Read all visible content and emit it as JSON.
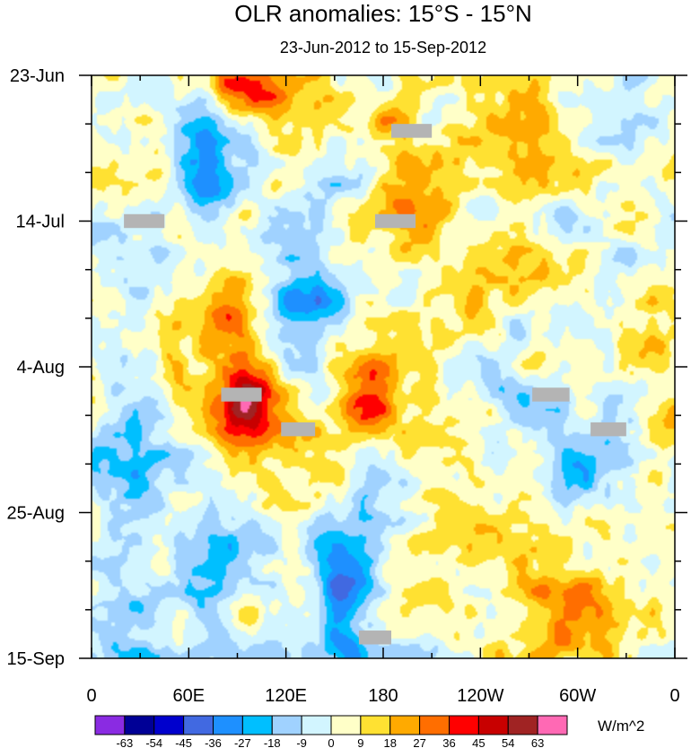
{
  "chart_data": {
    "type": "heatmap",
    "title": "OLR anomalies: 15°S - 15°N",
    "subtitle": "23-Jun-2012 to 15-Sep-2012",
    "x_axis": {
      "range_deg": [
        0,
        360
      ],
      "ticks": [
        {
          "deg": 0,
          "label": "0"
        },
        {
          "deg": 60,
          "label": "60E"
        },
        {
          "deg": 120,
          "label": "120E"
        },
        {
          "deg": 180,
          "label": "180"
        },
        {
          "deg": 240,
          "label": "120W"
        },
        {
          "deg": 300,
          "label": "60W"
        },
        {
          "deg": 360,
          "label": "0"
        }
      ],
      "minor_step_deg": 30
    },
    "y_axis": {
      "range_days": [
        0,
        84
      ],
      "ticks": [
        {
          "day": 0,
          "label": "23-Jun"
        },
        {
          "day": 21,
          "label": "14-Jul"
        },
        {
          "day": 42,
          "label": "4-Aug"
        },
        {
          "day": 63,
          "label": "25-Aug"
        },
        {
          "day": 84,
          "label": "15-Sep"
        }
      ],
      "minor_step_days": 7
    },
    "colorbar": {
      "units": "W/m^2",
      "levels": [
        "-63",
        "-54",
        "-45",
        "-36",
        "-27",
        "-18",
        "-9",
        "0",
        "9",
        "18",
        "27",
        "36",
        "45",
        "54",
        "63"
      ],
      "colors": [
        "#8a2be2",
        "#000096",
        "#0000cd",
        "#4169e1",
        "#1e90ff",
        "#00bfff",
        "#a0d2ff",
        "#d2f5ff",
        "#ffffc8",
        "#ffe132",
        "#ffaa00",
        "#ff6e00",
        "#ff0000",
        "#c80000",
        "#a02323",
        "#ff69b4"
      ]
    },
    "missing_color": "#b4b4b4",
    "missing_blocks": [
      {
        "lon": [
          20,
          45
        ],
        "day": [
          20,
          22
        ]
      },
      {
        "lon": [
          185,
          210
        ],
        "day": [
          7,
          9
        ]
      },
      {
        "lon": [
          175,
          200
        ],
        "day": [
          20,
          22
        ]
      },
      {
        "lon": [
          80,
          105
        ],
        "day": [
          45,
          47
        ]
      },
      {
        "lon": [
          117,
          138
        ],
        "day": [
          50,
          52
        ]
      },
      {
        "lon": [
          272,
          295
        ],
        "day": [
          45,
          47
        ]
      },
      {
        "lon": [
          308,
          330
        ],
        "day": [
          50,
          52
        ]
      },
      {
        "lon": [
          165,
          185
        ],
        "day": [
          80,
          82
        ]
      }
    ],
    "features": [
      {
        "lon": 100,
        "day": 2,
        "value": 40,
        "sx": 20,
        "sy": 3
      },
      {
        "lon": 70,
        "day": 12,
        "value": -30,
        "sx": 10,
        "sy": 6
      },
      {
        "lon": 80,
        "day": 34,
        "value": 30,
        "sx": 18,
        "sy": 6
      },
      {
        "lon": 95,
        "day": 47,
        "value": 42,
        "sx": 15,
        "sy": 4
      },
      {
        "lon": 115,
        "day": 52,
        "value": 25,
        "sx": 20,
        "sy": 4
      },
      {
        "lon": 145,
        "day": 33,
        "value": -28,
        "sx": 12,
        "sy": 5
      },
      {
        "lon": 120,
        "day": 32,
        "value": -20,
        "sx": 10,
        "sy": 3
      },
      {
        "lon": 170,
        "day": 47,
        "value": 38,
        "sx": 14,
        "sy": 4
      },
      {
        "lon": 150,
        "day": 38,
        "value": 28,
        "sx": 8,
        "sy": 3
      },
      {
        "lon": 152,
        "day": 74,
        "value": -32,
        "sx": 10,
        "sy": 5
      },
      {
        "lon": 170,
        "day": 70,
        "value": -15,
        "sx": 8,
        "sy": 8
      },
      {
        "lon": 160,
        "day": 84,
        "value": -22,
        "sx": 6,
        "sy": 2
      },
      {
        "lon": 195,
        "day": 14,
        "value": 20,
        "sx": 20,
        "sy": 8
      },
      {
        "lon": 250,
        "day": 10,
        "value": 18,
        "sx": 25,
        "sy": 4
      },
      {
        "lon": 250,
        "day": 28,
        "value": 22,
        "sx": 30,
        "sy": 4
      },
      {
        "lon": 270,
        "day": 48,
        "value": -30,
        "sx": 18,
        "sy": 3
      },
      {
        "lon": 300,
        "day": 57,
        "value": -18,
        "sx": 15,
        "sy": 4
      },
      {
        "lon": 300,
        "day": 77,
        "value": 30,
        "sx": 25,
        "sy": 6
      },
      {
        "lon": 225,
        "day": 66,
        "value": 15,
        "sx": 30,
        "sy": 5
      },
      {
        "lon": 345,
        "day": 35,
        "value": 15,
        "sx": 15,
        "sy": 6
      },
      {
        "lon": 50,
        "day": 40,
        "value": 20,
        "sx": 8,
        "sy": 4
      },
      {
        "lon": 20,
        "day": 60,
        "value": -15,
        "sx": 20,
        "sy": 10
      },
      {
        "lon": 72,
        "day": 70,
        "value": -22,
        "sx": 10,
        "sy": 8
      }
    ]
  }
}
